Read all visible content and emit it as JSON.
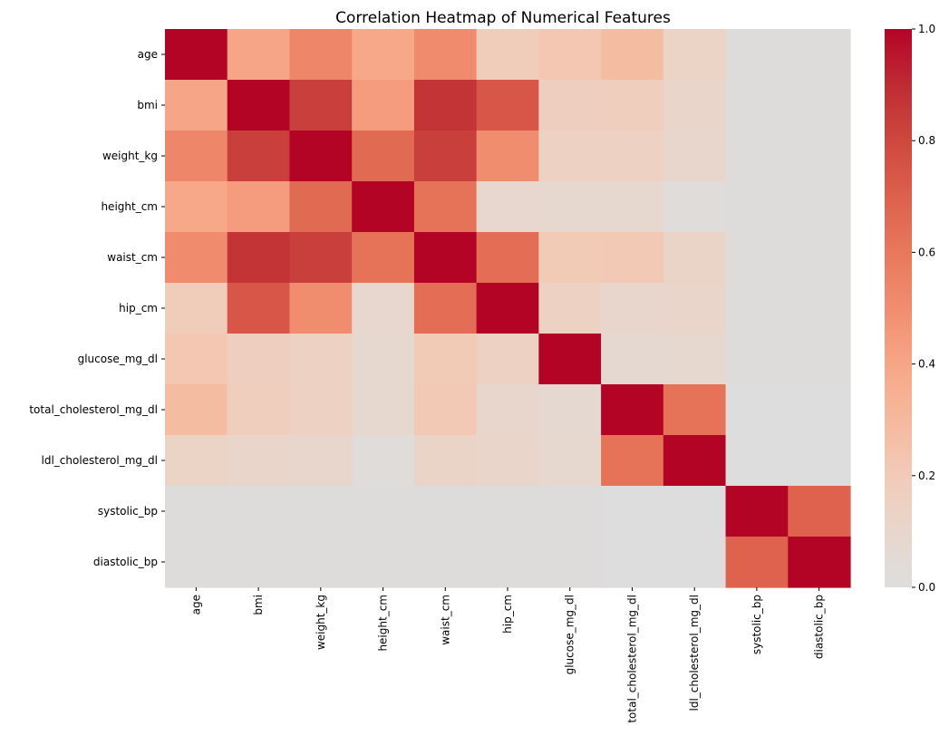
{
  "chart_data": {
    "type": "heatmap",
    "title": "Correlation Heatmap of Numerical Features",
    "xlabel": "",
    "ylabel": "",
    "features": [
      "age",
      "bmi",
      "weight_kg",
      "height_cm",
      "waist_cm",
      "hip_cm",
      "glucose_mg_dl",
      "total_cholesterol_mg_dl",
      "ldl_cholesterol_mg_dl",
      "systolic_bp",
      "diastolic_bp"
    ],
    "matrix": [
      [
        1.0,
        0.4,
        0.53,
        0.39,
        0.51,
        0.18,
        0.22,
        0.28,
        0.13,
        0.01,
        0.01
      ],
      [
        0.4,
        1.0,
        0.83,
        0.44,
        0.87,
        0.74,
        0.16,
        0.17,
        0.11,
        0.01,
        0.01
      ],
      [
        0.53,
        0.83,
        1.0,
        0.66,
        0.83,
        0.5,
        0.15,
        0.15,
        0.1,
        0.01,
        0.01
      ],
      [
        0.39,
        0.44,
        0.66,
        1.0,
        0.62,
        0.09,
        0.08,
        0.08,
        0.02,
        0.01,
        0.01
      ],
      [
        0.51,
        0.87,
        0.83,
        0.62,
        1.0,
        0.64,
        0.2,
        0.21,
        0.12,
        0.01,
        0.01
      ],
      [
        0.18,
        0.74,
        0.5,
        0.09,
        0.64,
        1.0,
        0.15,
        0.1,
        0.11,
        0.01,
        0.01
      ],
      [
        0.22,
        0.16,
        0.15,
        0.08,
        0.2,
        0.15,
        1.0,
        0.07,
        0.08,
        0.01,
        0.01
      ],
      [
        0.28,
        0.17,
        0.15,
        0.08,
        0.21,
        0.1,
        0.07,
        1.0,
        0.62,
        0.0,
        0.0
      ],
      [
        0.13,
        0.11,
        0.1,
        0.02,
        0.12,
        0.11,
        0.08,
        0.62,
        1.0,
        0.0,
        0.0
      ],
      [
        0.01,
        0.01,
        0.01,
        0.01,
        0.01,
        0.01,
        0.01,
        0.0,
        0.0,
        1.0,
        0.69
      ],
      [
        0.01,
        0.01,
        0.01,
        0.01,
        0.01,
        0.01,
        0.01,
        0.0,
        0.0,
        0.69,
        1.0
      ]
    ],
    "colorbar": {
      "colormap": "coolwarm",
      "vmin": 0.0,
      "vmax": 1.0,
      "ticks": [
        "0.0",
        "0.2",
        "0.4",
        "0.6",
        "0.8",
        "1.0"
      ],
      "tick_values": [
        0.0,
        0.2,
        0.4,
        0.6,
        0.8,
        1.0
      ]
    }
  }
}
